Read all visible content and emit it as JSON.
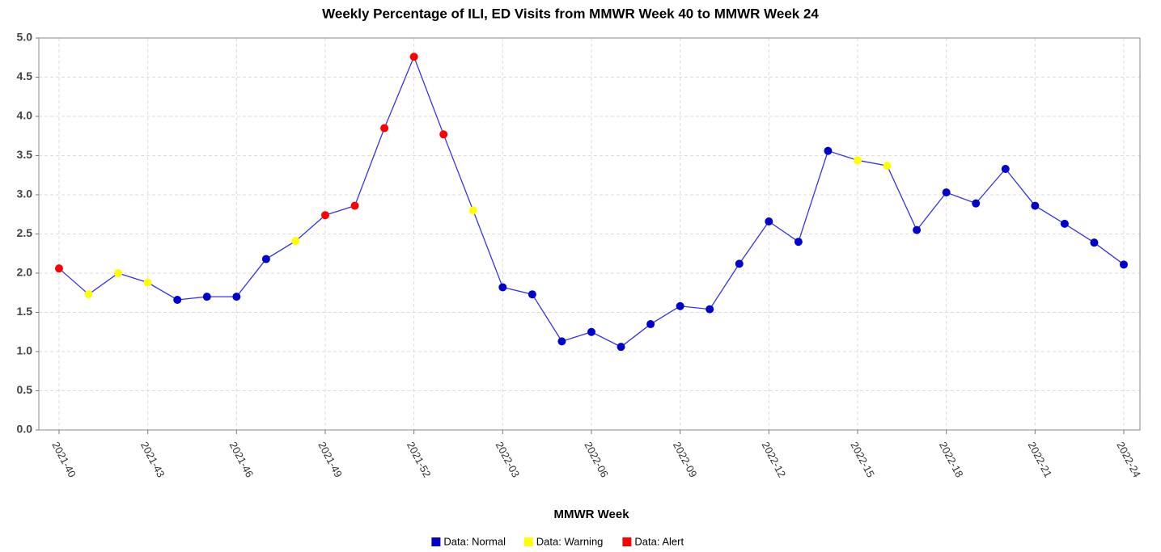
{
  "chart_data": {
    "type": "line",
    "title": "Weekly Percentage of ILI, ED Visits from MMWR Week 40 to MMWR Week 24",
    "x_label": "MMWR Week",
    "categories": [
      "2021-40",
      null,
      null,
      "2021-43",
      null,
      null,
      "2021-46",
      null,
      null,
      "2021-49",
      null,
      null,
      "2021-52",
      null,
      null,
      "2022-03",
      null,
      null,
      "2022-06",
      null,
      null,
      "2022-09",
      null,
      null,
      "2022-12",
      null,
      null,
      "2022-15",
      null,
      null,
      "2022-18",
      null,
      null,
      "2022-21",
      null,
      null,
      "2022-24"
    ],
    "line_color": "#3333ee",
    "series": [
      {
        "name": "Data: Normal",
        "color": "#0000cc",
        "values": [
          null,
          null,
          null,
          null,
          1.66,
          1.7,
          1.7,
          2.18,
          null,
          null,
          null,
          null,
          null,
          null,
          null,
          1.82,
          1.73,
          1.13,
          1.25,
          1.06,
          1.35,
          1.58,
          1.54,
          2.12,
          2.66,
          2.4,
          3.56,
          null,
          null,
          2.55,
          3.03,
          2.89,
          3.33,
          2.86,
          2.63,
          2.39,
          2.11
        ]
      },
      {
        "name": "Data: Warning",
        "color": "#ffff00",
        "values": [
          null,
          1.73,
          2.0,
          1.88,
          null,
          null,
          null,
          null,
          2.41,
          null,
          null,
          null,
          null,
          null,
          2.8,
          null,
          null,
          null,
          null,
          null,
          null,
          null,
          null,
          null,
          null,
          null,
          null,
          3.44,
          3.37,
          null,
          null,
          null,
          null,
          null,
          null,
          null,
          null
        ]
      },
      {
        "name": "Data: Alert",
        "color": "#ff0000",
        "values": [
          2.06,
          null,
          null,
          null,
          null,
          null,
          null,
          null,
          null,
          2.74,
          2.86,
          3.85,
          4.76,
          3.77,
          null,
          null,
          null,
          null,
          null,
          null,
          null,
          null,
          null,
          null,
          null,
          null,
          null,
          null,
          null,
          null,
          null,
          null,
          null,
          null,
          null,
          null,
          null
        ]
      }
    ],
    "ylim": [
      0,
      5
    ],
    "yticks": [
      {
        "value": 0,
        "label": "0.0"
      },
      0.5,
      {
        "value": 1,
        "label": "1.0"
      },
      1.5,
      {
        "value": 2,
        "label": "2.0"
      },
      2.5,
      {
        "value": 3,
        "label": "3.0"
      },
      3.5,
      {
        "value": 4,
        "label": "4.0"
      },
      4.5,
      {
        "value": 5,
        "label": "5.0"
      }
    ],
    "grid": true
  }
}
